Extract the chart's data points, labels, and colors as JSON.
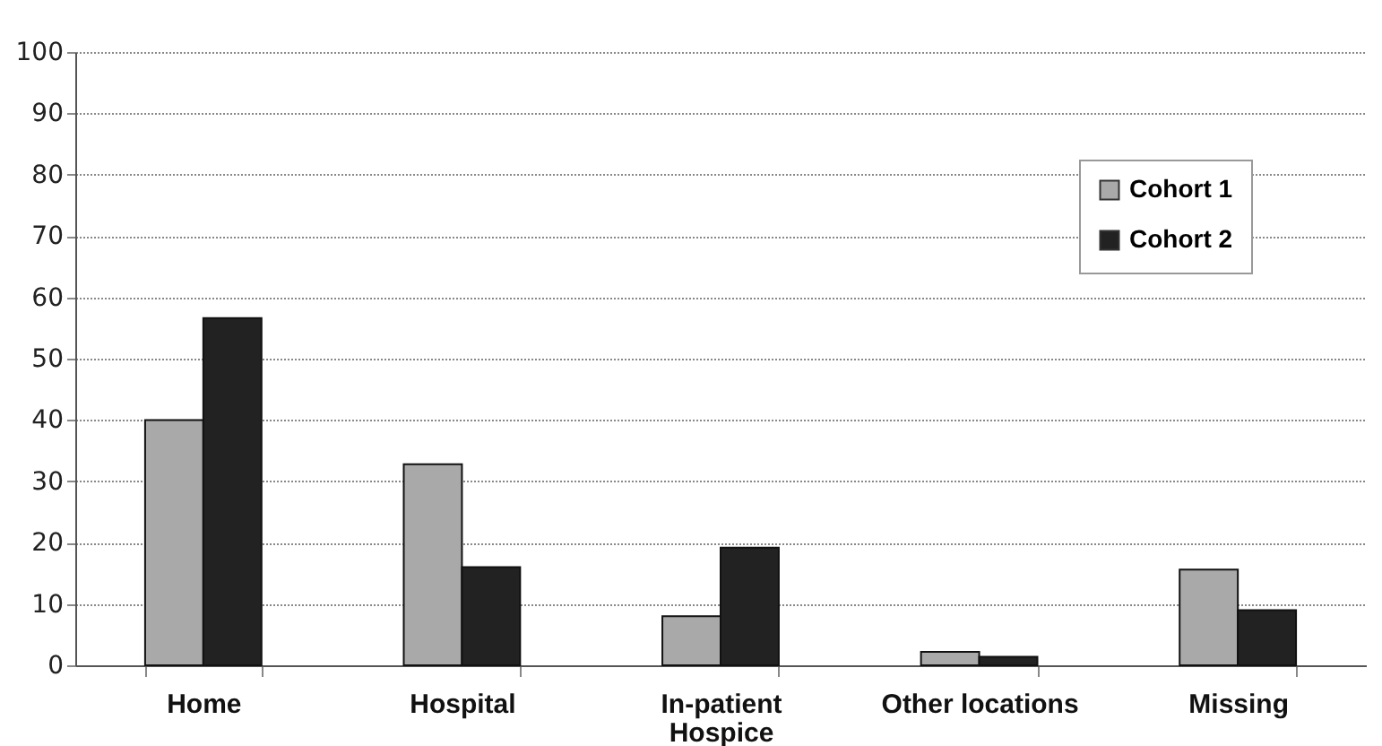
{
  "chart_data": {
    "type": "bar",
    "categories": [
      "Home",
      "Hospital",
      "In-patient Hospice",
      "Other locations",
      "Missing"
    ],
    "series": [
      {
        "name": "Cohort 1",
        "color": "#a9a9a9",
        "values": [
          40.0,
          32.8,
          8.0,
          2.2,
          15.6
        ]
      },
      {
        "name": "Cohort 2",
        "color": "#222222",
        "values": [
          56.6,
          16.0,
          19.2,
          1.4,
          9.0
        ]
      }
    ],
    "ylim": [
      0,
      100
    ],
    "yticks": [
      0,
      10,
      20,
      30,
      40,
      50,
      60,
      70,
      80,
      90,
      100
    ],
    "grid": "y",
    "legend": "top right"
  }
}
